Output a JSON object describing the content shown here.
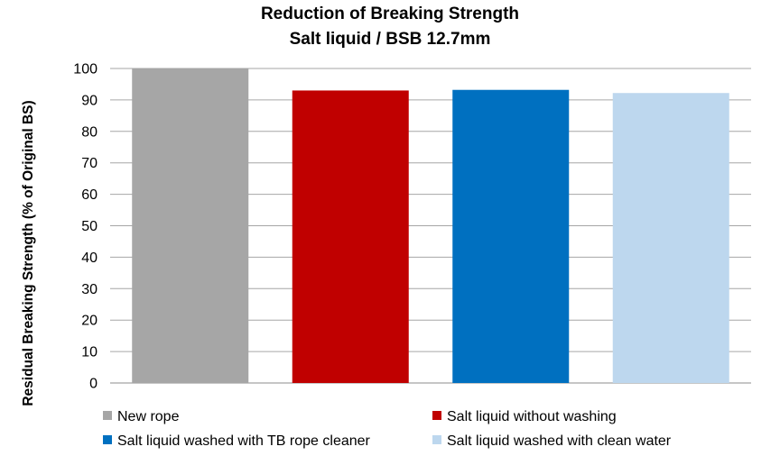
{
  "chart_data": {
    "type": "bar",
    "title": "Reduction of Breaking Strength",
    "subtitle": "Salt liquid / BSB 12.7mm",
    "xlabel": "",
    "ylabel": "Residual Breaking Strength (% of Original BS)",
    "ylim": [
      0,
      100
    ],
    "yticks": [
      0,
      10,
      20,
      30,
      40,
      50,
      60,
      70,
      80,
      90,
      100
    ],
    "grid": true,
    "legend_position": "bottom",
    "series": [
      {
        "name": "New rope",
        "value": 100,
        "color": "#a6a6a6"
      },
      {
        "name": "Salt liquid without washing",
        "value": 93,
        "color": "#c00000"
      },
      {
        "name": "Salt liquid washed with TB rope cleaner",
        "value": 93.2,
        "color": "#0070c0"
      },
      {
        "name": "Salt liquid washed with clean water",
        "value": 92.2,
        "color": "#bdd7ee"
      }
    ]
  }
}
